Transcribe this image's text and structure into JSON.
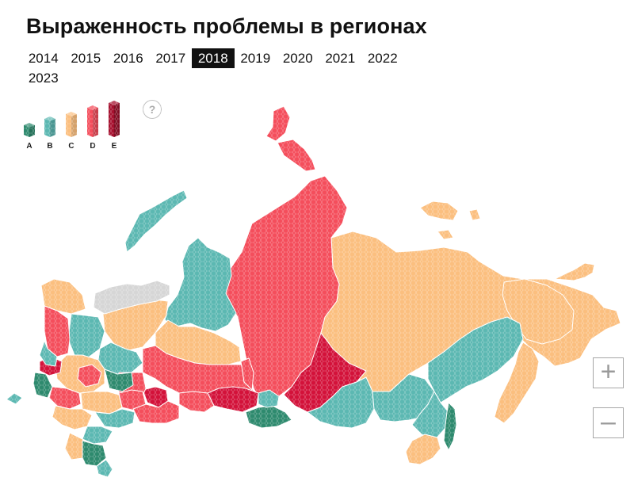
{
  "title": "Выраженность проблемы в регионах",
  "years": [
    "2014",
    "2015",
    "2016",
    "2017",
    "2018",
    "2019",
    "2020",
    "2021",
    "2022",
    "2023"
  ],
  "selected_year": "2018",
  "legend": [
    {
      "label": "A",
      "color": "#2e8a6e"
    },
    {
      "label": "B",
      "color": "#5cb8b2"
    },
    {
      "label": "C",
      "color": "#fbbf7f"
    },
    {
      "label": "D",
      "color": "#f44e5c"
    },
    {
      "label": "E",
      "color": "#d3123a"
    }
  ],
  "help": {
    "label": "?"
  },
  "zoom": {
    "in_label": "+",
    "out_label": "–"
  },
  "colors": {
    "no_data": "#d6d6d6"
  }
}
